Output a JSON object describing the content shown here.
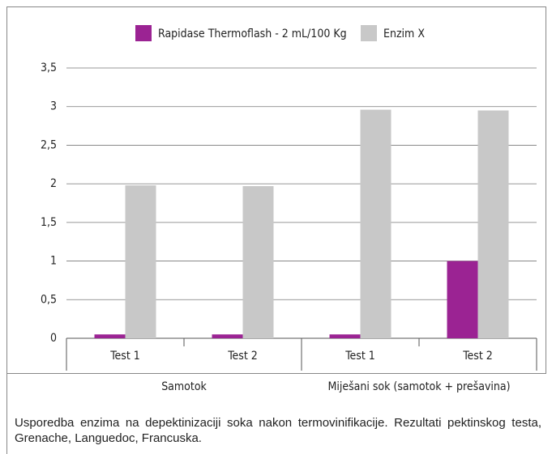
{
  "chart_data": {
    "type": "bar",
    "categories": [
      "Test 1",
      "Test 2",
      "Test 1",
      "Test 2"
    ],
    "group_labels": [
      "Samotok",
      "Miješani sok (samotok + prešavina)"
    ],
    "series": [
      {
        "name": "Rapidase Thermoflash - 2 mL/100 Kg",
        "color": "#9b2393",
        "values": [
          0.05,
          0.05,
          0.05,
          1.0
        ]
      },
      {
        "name": "Enzim X",
        "color": "#c8c8c8",
        "values": [
          1.98,
          1.97,
          2.96,
          2.95
        ]
      }
    ],
    "ylim": [
      0,
      3.5
    ],
    "yticks": [
      0,
      {
        "value": 0.5,
        "label": "0,5"
      },
      1,
      {
        "value": 1.5,
        "label": "1,5"
      },
      2,
      {
        "value": 2.5,
        "label": "2,5"
      },
      3,
      {
        "value": 3.5,
        "label": "3,5"
      }
    ],
    "grid": true,
    "legend": "top",
    "caption": "Usporedba enzima na depektinizaciji soka nakon termovinifikacije. Rezultati pektinskog testa, Grenache, Languedoc, Francuska."
  }
}
